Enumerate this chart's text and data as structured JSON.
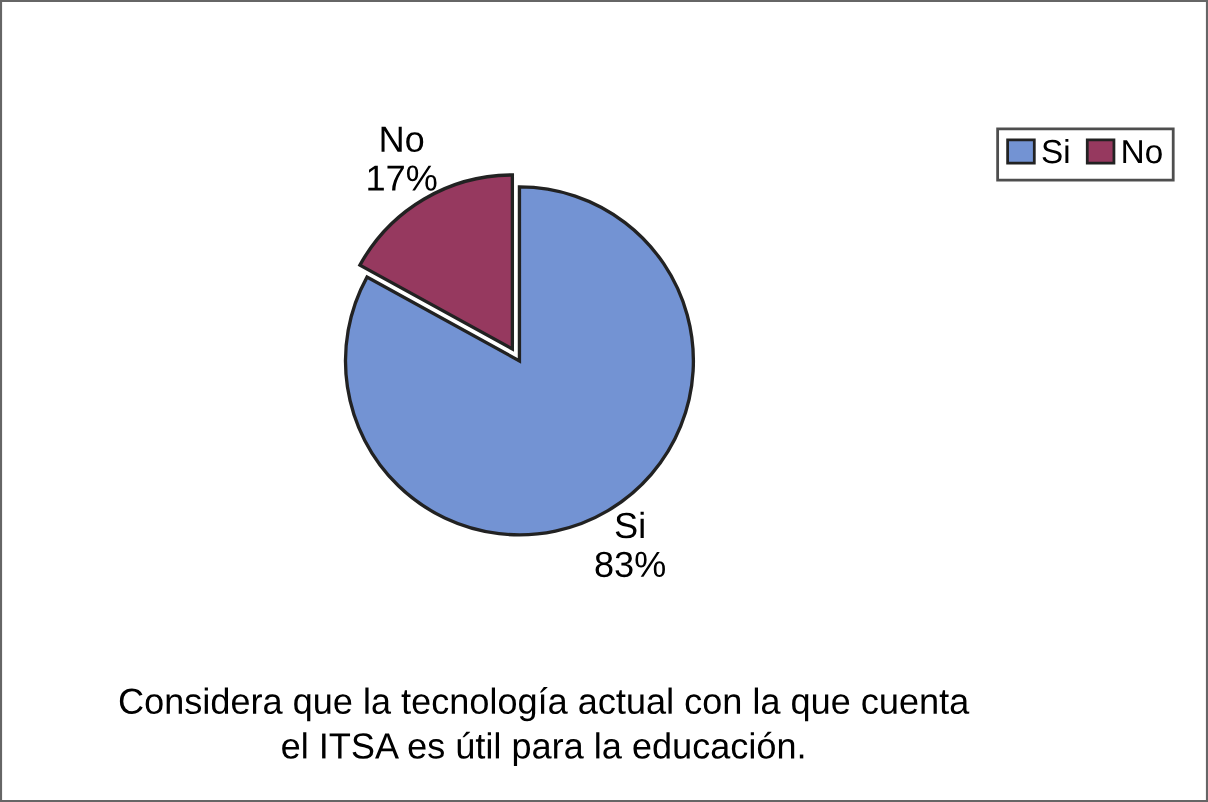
{
  "chart_data": {
    "type": "pie",
    "title": "Considera que la tecnología actual con la que cuenta\nel ITSA es útil para la educación.",
    "categories": [
      "Si",
      "No"
    ],
    "values": [
      83,
      17
    ],
    "colors": [
      "#7393d3",
      "#96395f"
    ],
    "value_labels": [
      "83%",
      "17%"
    ],
    "legend": "top right"
  }
}
